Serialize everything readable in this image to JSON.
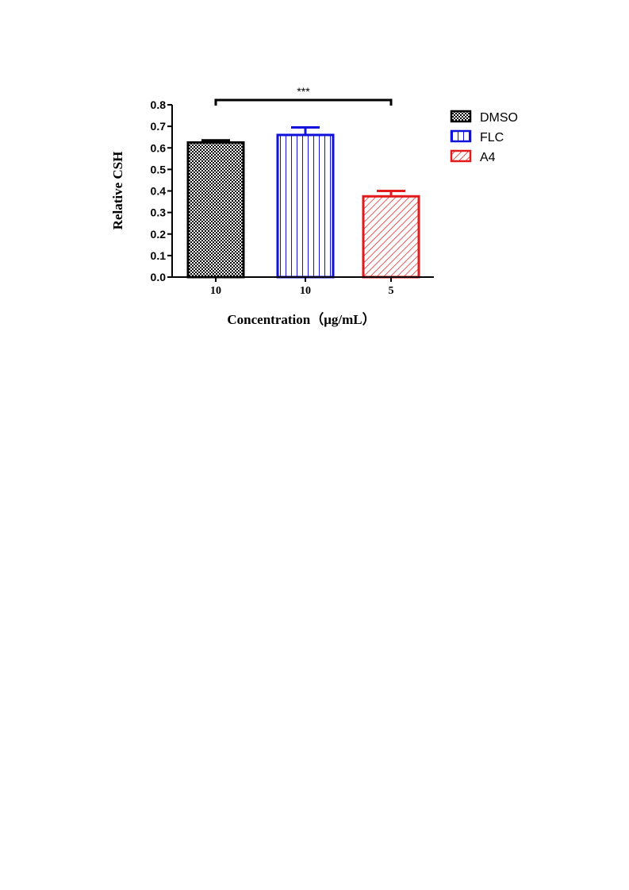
{
  "chart_data": {
    "type": "bar",
    "categories": [
      "10",
      "10",
      "5"
    ],
    "series_names": [
      "DMSO",
      "FLC",
      "A4"
    ],
    "values": [
      0.625,
      0.66,
      0.375
    ],
    "errors": [
      0.01,
      0.035,
      0.025
    ],
    "colors": [
      "#000000",
      "#1111dd",
      "#e31a1c"
    ],
    "patterns": [
      "checker",
      "vertical",
      "diagonal"
    ],
    "xlabel": "Concentration（μg/mL）",
    "ylabel": "Relative CSH",
    "ylim": [
      0,
      0.8
    ],
    "yticks": [
      "0.0",
      "0.1",
      "0.2",
      "0.3",
      "0.4",
      "0.5",
      "0.6",
      "0.7",
      "0.8"
    ],
    "grid": false,
    "legend_position": "top-right",
    "significance": {
      "from": 0,
      "to": 2,
      "label": "***"
    }
  }
}
